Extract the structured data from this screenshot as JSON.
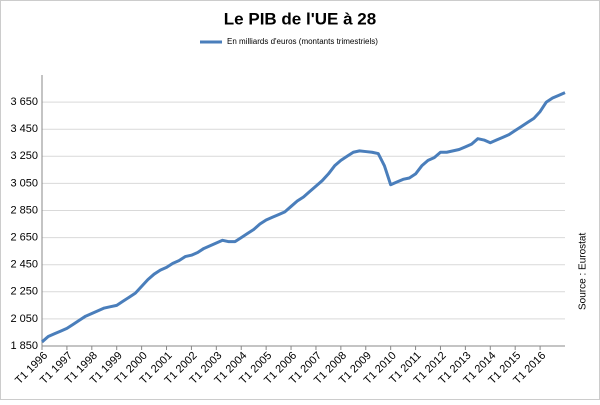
{
  "chart_data": {
    "type": "line",
    "title": "Le PIB de l'UE à 28",
    "source": "Source : Eurostat",
    "categories": [
      "T1 1996",
      null,
      null,
      null,
      "T1 1997",
      null,
      null,
      null,
      "T1 1998",
      null,
      null,
      null,
      "T1 1999",
      null,
      null,
      null,
      "T1 2000",
      null,
      null,
      null,
      "T1 2001",
      null,
      null,
      null,
      "T1 2002",
      null,
      null,
      null,
      "T1 2003",
      null,
      null,
      null,
      "T1 2004",
      null,
      null,
      null,
      "T1 2005",
      null,
      null,
      null,
      "T1 2006",
      null,
      null,
      null,
      "T1 2007",
      null,
      null,
      null,
      "T1 2008",
      null,
      null,
      null,
      "T1 2009",
      null,
      null,
      null,
      "T1 2010",
      null,
      null,
      null,
      "T1 2011",
      null,
      null,
      null,
      "T1 2012",
      null,
      null,
      null,
      "T1 2013",
      null,
      null,
      null,
      "T1 2014",
      null,
      null,
      null,
      "T1 2015",
      null,
      null,
      null,
      "T1 2016",
      null,
      null,
      null,
      null
    ],
    "series": [
      {
        "name": "En milliards d'euros (montants trimestriels)",
        "color": "#4a7ebb",
        "values": [
          1880,
          1920,
          1940,
          1960,
          1980,
          2010,
          2040,
          2070,
          2090,
          2110,
          2130,
          2140,
          2150,
          2180,
          2210,
          2240,
          2290,
          2340,
          2380,
          2410,
          2430,
          2460,
          2480,
          2510,
          2520,
          2540,
          2570,
          2590,
          2610,
          2630,
          2620,
          2620,
          2650,
          2680,
          2710,
          2750,
          2780,
          2800,
          2820,
          2840,
          2880,
          2920,
          2950,
          2990,
          3030,
          3070,
          3120,
          3180,
          3220,
          3250,
          3280,
          3290,
          3285,
          3280,
          3270,
          3180,
          3040,
          3060,
          3080,
          3090,
          3120,
          3180,
          3220,
          3240,
          3280,
          3280,
          3290,
          3300,
          3320,
          3340,
          3380,
          3370,
          3350,
          3370,
          3390,
          3410,
          3440,
          3470,
          3500,
          3530,
          3580,
          3650,
          3680,
          3700,
          3720
        ]
      }
    ],
    "ylim": [
      1850,
      3850
    ],
    "yticks": [
      {
        "value": 1850,
        "label": "1 850"
      },
      {
        "value": 2050,
        "label": "2 050"
      },
      {
        "value": 2250,
        "label": "2 250"
      },
      {
        "value": 2450,
        "label": "2 450"
      },
      {
        "value": 2650,
        "label": "2 650"
      },
      {
        "value": 2850,
        "label": "2 850"
      },
      {
        "value": 3050,
        "label": "3 050"
      },
      {
        "value": 3250,
        "label": "3 250"
      },
      {
        "value": 3450,
        "label": "3 450"
      },
      {
        "value": 3650,
        "label": "3 650"
      }
    ],
    "grid": true
  }
}
